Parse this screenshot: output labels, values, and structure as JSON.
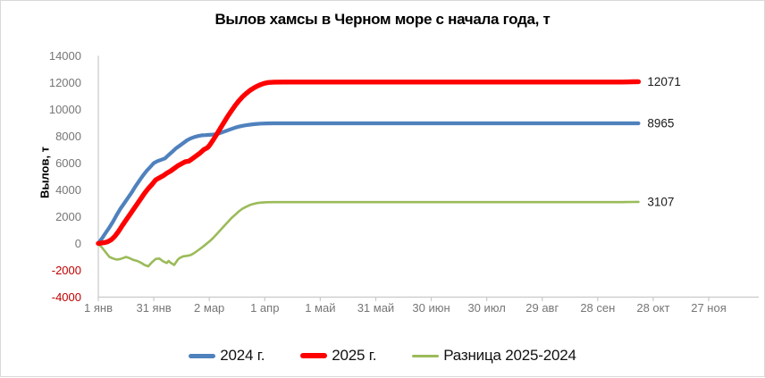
{
  "title": "Вылов хамсы в Черном море с начала года, т",
  "y_axis_title": "Вылов, т",
  "end_labels": {
    "red": "12071",
    "blue": "8965",
    "green": "3107"
  },
  "colors": {
    "series_2024": "#4F81BD",
    "series_2025": "#FE0000",
    "series_diff": "#9BBB59",
    "axis_line": "#c9c9c9",
    "tick_label": "#767676",
    "negative_tick_label": "#c00000",
    "data_label": "#1a1a1a"
  },
  "chart_data": {
    "type": "line",
    "title": "Вылов хамсы в Черном море с начала года, т",
    "xlabel": "",
    "ylabel": "Вылов, т",
    "ylim": [
      -4000,
      14000
    ],
    "y_tick_step": 2000,
    "grid": false,
    "legend_position": "bottom",
    "y_ticks": [
      14000,
      12000,
      10000,
      8000,
      6000,
      4000,
      2000,
      0,
      -2000,
      -4000
    ],
    "x_ticks": [
      {
        "day": 0,
        "label": "1 янв"
      },
      {
        "day": 30,
        "label": "31 янв"
      },
      {
        "day": 60,
        "label": "2 мар"
      },
      {
        "day": 90,
        "label": "1 апр"
      },
      {
        "day": 120,
        "label": "1 май"
      },
      {
        "day": 150,
        "label": "31 май"
      },
      {
        "day": 180,
        "label": "30 июн"
      },
      {
        "day": 210,
        "label": "30 июл"
      },
      {
        "day": 240,
        "label": "29 авг"
      },
      {
        "day": 270,
        "label": "28 сен"
      },
      {
        "day": 300,
        "label": "28 окт"
      },
      {
        "day": 330,
        "label": "27 ноя"
      }
    ],
    "draw_order": [
      2,
      0,
      1
    ],
    "series": [
      {
        "name": "2024 г.",
        "color": "#4F81BD",
        "line_width": 4.2,
        "end_label": "8965",
        "final_value": 8965,
        "points": [
          [
            0,
            30
          ],
          [
            2,
            380
          ],
          [
            4,
            800
          ],
          [
            6,
            1200
          ],
          [
            8,
            1650
          ],
          [
            10,
            2150
          ],
          [
            12,
            2600
          ],
          [
            14,
            3000
          ],
          [
            16,
            3400
          ],
          [
            18,
            3800
          ],
          [
            20,
            4250
          ],
          [
            22,
            4650
          ],
          [
            24,
            5050
          ],
          [
            26,
            5400
          ],
          [
            28,
            5700
          ],
          [
            30,
            6000
          ],
          [
            32,
            6150
          ],
          [
            34,
            6250
          ],
          [
            36,
            6350
          ],
          [
            38,
            6600
          ],
          [
            40,
            6850
          ],
          [
            42,
            7100
          ],
          [
            44,
            7300
          ],
          [
            46,
            7500
          ],
          [
            48,
            7700
          ],
          [
            50,
            7850
          ],
          [
            52,
            7950
          ],
          [
            54,
            8020
          ],
          [
            56,
            8070
          ],
          [
            58,
            8090
          ],
          [
            60,
            8110
          ],
          [
            62,
            8130
          ],
          [
            64,
            8160
          ],
          [
            66,
            8250
          ],
          [
            68,
            8350
          ],
          [
            70,
            8450
          ],
          [
            72,
            8550
          ],
          [
            74,
            8650
          ],
          [
            76,
            8720
          ],
          [
            78,
            8780
          ],
          [
            80,
            8830
          ],
          [
            82,
            8870
          ],
          [
            84,
            8900
          ],
          [
            86,
            8925
          ],
          [
            88,
            8945
          ],
          [
            91,
            8958
          ],
          [
            95,
            8965
          ],
          [
            180,
            8965
          ],
          [
            292,
            8965
          ]
        ]
      },
      {
        "name": "2025 г.",
        "color": "#FE0000",
        "line_width": 5.4,
        "end_label": "12071",
        "final_value": 12071,
        "points": [
          [
            0,
            10
          ],
          [
            3,
            60
          ],
          [
            5,
            130
          ],
          [
            7,
            280
          ],
          [
            9,
            550
          ],
          [
            11,
            920
          ],
          [
            13,
            1350
          ],
          [
            15,
            1750
          ],
          [
            17,
            2150
          ],
          [
            19,
            2550
          ],
          [
            21,
            2950
          ],
          [
            23,
            3350
          ],
          [
            25,
            3750
          ],
          [
            27,
            4100
          ],
          [
            29,
            4400
          ],
          [
            31,
            4750
          ],
          [
            33,
            4900
          ],
          [
            35,
            5050
          ],
          [
            37,
            5250
          ],
          [
            39,
            5400
          ],
          [
            41,
            5600
          ],
          [
            43,
            5800
          ],
          [
            45,
            5950
          ],
          [
            47,
            6100
          ],
          [
            49,
            6150
          ],
          [
            51,
            6350
          ],
          [
            53,
            6550
          ],
          [
            55,
            6750
          ],
          [
            57,
            7000
          ],
          [
            59,
            7150
          ],
          [
            60,
            7300
          ],
          [
            62,
            7700
          ],
          [
            64,
            8150
          ],
          [
            66,
            8600
          ],
          [
            68,
            9050
          ],
          [
            70,
            9500
          ],
          [
            72,
            9900
          ],
          [
            74,
            10300
          ],
          [
            76,
            10650
          ],
          [
            78,
            10950
          ],
          [
            80,
            11200
          ],
          [
            82,
            11420
          ],
          [
            84,
            11600
          ],
          [
            86,
            11750
          ],
          [
            88,
            11870
          ],
          [
            90,
            11960
          ],
          [
            92,
            12010
          ],
          [
            95,
            12040
          ],
          [
            100,
            12050
          ],
          [
            240,
            12050
          ],
          [
            283,
            12050
          ],
          [
            286,
            12056
          ],
          [
            289,
            12064
          ],
          [
            292,
            12071
          ]
        ]
      },
      {
        "name": "Разница 2025-2024",
        "color": "#9BBB59",
        "line_width": 2.6,
        "end_label": "3107",
        "final_value": 3107,
        "points": [
          [
            0,
            -20
          ],
          [
            2,
            -300
          ],
          [
            4,
            -650
          ],
          [
            6,
            -1000
          ],
          [
            8,
            -1120
          ],
          [
            10,
            -1200
          ],
          [
            12,
            -1150
          ],
          [
            14,
            -1050
          ],
          [
            15,
            -1000
          ],
          [
            17,
            -1100
          ],
          [
            19,
            -1230
          ],
          [
            21,
            -1300
          ],
          [
            23,
            -1430
          ],
          [
            25,
            -1600
          ],
          [
            27,
            -1700
          ],
          [
            29,
            -1400
          ],
          [
            31,
            -1150
          ],
          [
            33,
            -1120
          ],
          [
            35,
            -1330
          ],
          [
            37,
            -1450
          ],
          [
            38,
            -1300
          ],
          [
            39,
            -1430
          ],
          [
            41,
            -1600
          ],
          [
            43,
            -1200
          ],
          [
            44,
            -1080
          ],
          [
            46,
            -950
          ],
          [
            48,
            -920
          ],
          [
            50,
            -860
          ],
          [
            52,
            -700
          ],
          [
            54,
            -500
          ],
          [
            56,
            -300
          ],
          [
            58,
            -80
          ],
          [
            60,
            150
          ],
          [
            62,
            400
          ],
          [
            64,
            700
          ],
          [
            66,
            1000
          ],
          [
            68,
            1300
          ],
          [
            70,
            1600
          ],
          [
            72,
            1900
          ],
          [
            74,
            2150
          ],
          [
            76,
            2400
          ],
          [
            78,
            2600
          ],
          [
            80,
            2750
          ],
          [
            82,
            2870
          ],
          [
            84,
            2960
          ],
          [
            86,
            3020
          ],
          [
            88,
            3055
          ],
          [
            91,
            3080
          ],
          [
            95,
            3088
          ],
          [
            100,
            3090
          ],
          [
            240,
            3090
          ],
          [
            283,
            3090
          ],
          [
            286,
            3094
          ],
          [
            289,
            3100
          ],
          [
            292,
            3107
          ]
        ]
      }
    ]
  }
}
